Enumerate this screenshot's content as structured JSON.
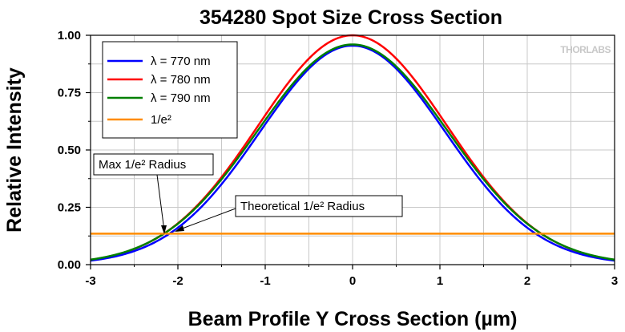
{
  "chart_data": {
    "type": "line",
    "title": "354280 Spot Size Cross Section",
    "xlabel": "Beam Profile Y Cross Section (µm)",
    "ylabel": "Relative Intensity",
    "xlim": [
      -3,
      3
    ],
    "ylim": [
      0,
      1.0
    ],
    "x_ticks": [
      "-3",
      "-2",
      "-1",
      "0",
      "1",
      "2",
      "3"
    ],
    "y_ticks": [
      "0.00",
      "0.25",
      "0.50",
      "0.75",
      "1.00"
    ],
    "grid": true,
    "legend_position": "top-left",
    "watermark": "THORLABS",
    "series": [
      {
        "name": "λ = 770 nm",
        "color": "#0000ff",
        "peak": 0.955,
        "one_over_e2_radius": 2.12
      },
      {
        "name": "λ = 780 nm",
        "color": "#ff0000",
        "peak": 1.0,
        "one_over_e2_radius": 2.16
      },
      {
        "name": "λ = 790 nm",
        "color": "#008000",
        "peak": 0.96,
        "one_over_e2_radius": 2.18
      },
      {
        "name": "1/e²",
        "color": "#ff8c00",
        "constant": 0.135
      }
    ],
    "annotations": [
      {
        "text": "Max 1/e² Radius",
        "target_x": -2.18,
        "target_y": 0.135
      },
      {
        "text": "Theoretical 1/e² Radius",
        "target_x": -2.05,
        "target_y": 0.135
      }
    ]
  }
}
